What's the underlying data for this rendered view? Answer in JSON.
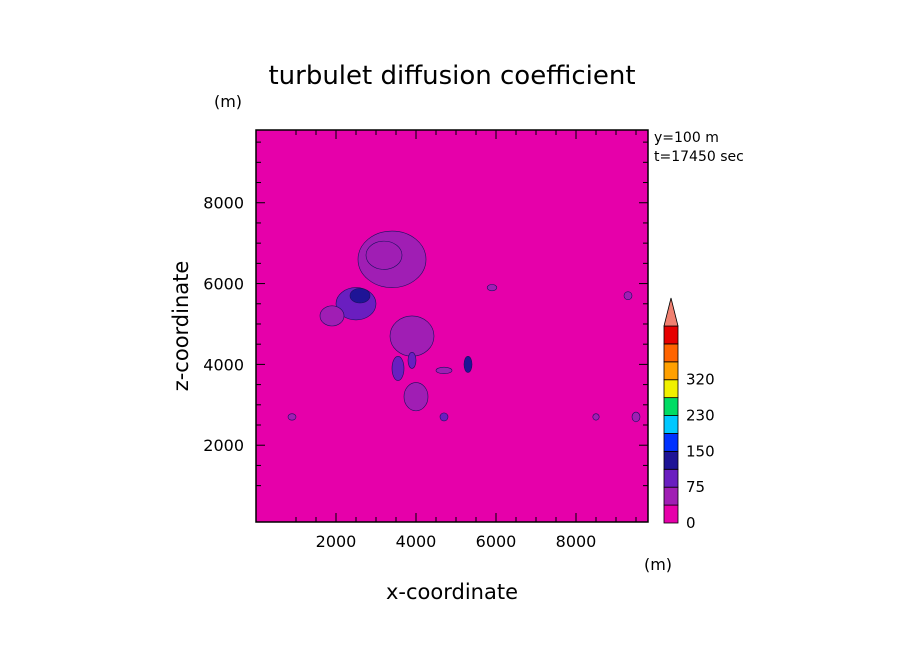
{
  "chart_data": {
    "type": "heatmap",
    "title": "turbulet diffusion coefficient",
    "xlabel": "x-coordinate",
    "ylabel": "z-coordinate",
    "x_unit": "(m)",
    "y_unit": "(m)",
    "annotations": [
      "y=100 m",
      "t=17450 sec"
    ],
    "xlim": [
      0,
      9800
    ],
    "ylim": [
      100,
      9800
    ],
    "x_ticks": [
      2000,
      4000,
      6000,
      8000
    ],
    "y_ticks": [
      2000,
      4000,
      6000,
      8000
    ],
    "x_tick_labels": [
      "2000",
      "4000",
      "6000",
      "8000"
    ],
    "y_tick_labels": [
      "2000",
      "4000",
      "6000",
      "8000"
    ],
    "background_value": 0,
    "colorbar": {
      "labels": [
        "0",
        "75",
        "150",
        "230",
        "320"
      ],
      "label_values": [
        0,
        75,
        150,
        230,
        320
      ],
      "levels": [
        0,
        37.5,
        75,
        112.5,
        150,
        190,
        230,
        275,
        320,
        360
      ],
      "colors": [
        "#e600aa",
        "#a01eb4",
        "#6a1ec0",
        "#1e1496",
        "#0032ff",
        "#00c8ff",
        "#00dc64",
        "#f0f000",
        "#ffa000",
        "#ff6400",
        "#e60000"
      ],
      "extend": "max",
      "extend_color": "#f08070"
    },
    "features": [
      {
        "name": "upper-cloud",
        "x": 3400,
        "z": 6600,
        "rx": 850,
        "rz": 700,
        "value": 40
      },
      {
        "name": "upper-cloud-core",
        "x": 3200,
        "z": 6700,
        "rx": 450,
        "rz": 350,
        "value": 60
      },
      {
        "name": "main-cloud",
        "x": 2500,
        "z": 5500,
        "rx": 500,
        "rz": 400,
        "value": 80
      },
      {
        "name": "main-core",
        "x": 2600,
        "z": 5700,
        "rx": 250,
        "rz": 180,
        "value": 120
      },
      {
        "name": "left-arm",
        "x": 1900,
        "z": 5200,
        "rx": 300,
        "rz": 250,
        "value": 45
      },
      {
        "name": "mid-cloud",
        "x": 3900,
        "z": 4700,
        "rx": 550,
        "rz": 500,
        "value": 45
      },
      {
        "name": "mid-core-1",
        "x": 3550,
        "z": 3900,
        "rx": 150,
        "rz": 300,
        "value": 90
      },
      {
        "name": "mid-core-2",
        "x": 3900,
        "z": 4100,
        "rx": 100,
        "rz": 200,
        "value": 100
      },
      {
        "name": "right-blob",
        "x": 5300,
        "z": 4000,
        "rx": 100,
        "rz": 200,
        "value": 140
      },
      {
        "name": "low-tail",
        "x": 4000,
        "z": 3200,
        "rx": 300,
        "rz": 350,
        "value": 45
      },
      {
        "name": "spot-a",
        "x": 4700,
        "z": 2700,
        "rx": 100,
        "rz": 100,
        "value": 80
      },
      {
        "name": "spot-b",
        "x": 4700,
        "z": 3850,
        "rx": 200,
        "rz": 80,
        "value": 70
      },
      {
        "name": "spot-c",
        "x": 9500,
        "z": 2700,
        "rx": 100,
        "rz": 120,
        "value": 70
      },
      {
        "name": "spot-d",
        "x": 5900,
        "z": 5900,
        "rx": 120,
        "rz": 80,
        "value": 40
      },
      {
        "name": "spot-e",
        "x": 9300,
        "z": 5700,
        "rx": 100,
        "rz": 100,
        "value": 40
      },
      {
        "name": "spot-f",
        "x": 900,
        "z": 2700,
        "rx": 100,
        "rz": 80,
        "value": 40
      },
      {
        "name": "spot-g",
        "x": 8500,
        "z": 2700,
        "rx": 80,
        "rz": 80,
        "value": 40
      }
    ]
  }
}
